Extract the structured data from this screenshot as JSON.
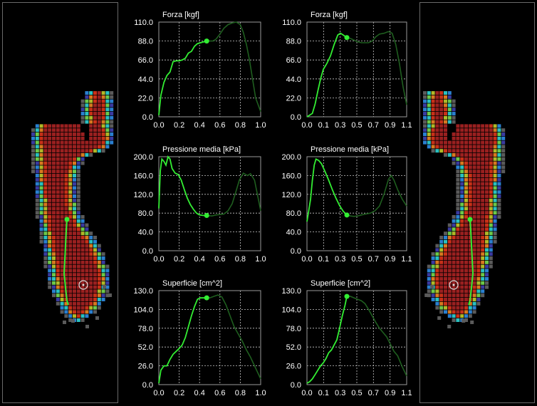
{
  "colors": {
    "background": "#000000",
    "panel_border": "#6a6a6a",
    "grid": "#c8c8c8",
    "axis_text": "#ffffff",
    "trace_active": "#33ee33",
    "trace_pending": "#1f5e1f",
    "pressure_scale": [
      "#5a5a5a",
      "#3a3aa0",
      "#2a7fd0",
      "#2ac0c0",
      "#6cc84a",
      "#b0b828",
      "#d87820",
      "#c83018",
      "#9a2020"
    ],
    "cop_marker": "#33ee33",
    "start_marker": "#dddddd"
  },
  "left_foot": {
    "side": "left",
    "cop_trace_icon": "cop-trace",
    "start_marker_icon": "circle-marker"
  },
  "right_foot": {
    "side": "right",
    "cop_trace_icon": "cop-trace",
    "start_marker_icon": "circle-marker"
  },
  "chart_data": [
    {
      "type": "line",
      "foot": "left",
      "title": "Forza [kgf]",
      "ylim": [
        0,
        110
      ],
      "yticks": [
        "0.0",
        "22.0",
        "44.0",
        "66.0",
        "88.0",
        "110.0"
      ],
      "xlim": [
        0,
        1.0
      ],
      "xticks": [
        "0.0",
        "0.2",
        "0.4",
        "0.6",
        "0.8",
        "1.0"
      ],
      "cursor_x": 0.47,
      "grid": true,
      "x": [
        0.0,
        0.02,
        0.05,
        0.08,
        0.11,
        0.14,
        0.17,
        0.2,
        0.23,
        0.26,
        0.29,
        0.32,
        0.35,
        0.38,
        0.41,
        0.44,
        0.47,
        0.5,
        0.53,
        0.56,
        0.6,
        0.64,
        0.68,
        0.72,
        0.76,
        0.8,
        0.83,
        0.86,
        0.89,
        0.92,
        0.95,
        1.0
      ],
      "y": [
        2,
        25,
        40,
        48,
        52,
        64,
        65,
        65,
        66,
        68,
        74,
        76,
        82,
        85,
        86,
        87,
        88,
        88,
        88,
        90,
        96,
        103,
        107,
        109,
        110,
        107,
        98,
        84,
        66,
        44,
        22,
        6
      ]
    },
    {
      "type": "line",
      "foot": "right",
      "title": "Forza [kgf]",
      "ylim": [
        0,
        110
      ],
      "yticks": [
        "0.0",
        "22.0",
        "44.0",
        "66.0",
        "88.0",
        "110.0"
      ],
      "xlim": [
        0,
        1.1
      ],
      "xticks": [
        "0.0",
        "0.1",
        "0.3",
        "0.5",
        "0.7",
        "0.9",
        "1.1"
      ],
      "cursor_x": 0.44,
      "grid": true,
      "x": [
        0.0,
        0.03,
        0.06,
        0.09,
        0.12,
        0.15,
        0.18,
        0.22,
        0.26,
        0.3,
        0.34,
        0.37,
        0.4,
        0.44,
        0.48,
        0.52,
        0.56,
        0.6,
        0.64,
        0.68,
        0.72,
        0.76,
        0.8,
        0.85,
        0.9,
        0.94,
        0.98,
        1.02,
        1.06,
        1.1
      ],
      "y": [
        0,
        2,
        4,
        15,
        30,
        44,
        55,
        62,
        71,
        84,
        95,
        97,
        95,
        92,
        91,
        89,
        87,
        86,
        86,
        86,
        88,
        93,
        96,
        97,
        99,
        97,
        84,
        62,
        35,
        14
      ]
    },
    {
      "type": "line",
      "foot": "left",
      "title": "Pressione media [kPa]",
      "ylim": [
        0,
        200
      ],
      "yticks": [
        "0.0",
        "40.0",
        "80.0",
        "120.0",
        "160.0",
        "200.0"
      ],
      "xlim": [
        0,
        1.0
      ],
      "xticks": [
        "0.0",
        "0.2",
        "0.4",
        "0.6",
        "0.8",
        "1.0"
      ],
      "cursor_x": 0.47,
      "grid": true,
      "x": [
        0.0,
        0.015,
        0.03,
        0.05,
        0.07,
        0.09,
        0.11,
        0.13,
        0.16,
        0.19,
        0.22,
        0.25,
        0.28,
        0.31,
        0.34,
        0.37,
        0.4,
        0.44,
        0.47,
        0.52,
        0.56,
        0.6,
        0.64,
        0.68,
        0.72,
        0.76,
        0.79,
        0.83,
        0.87,
        0.9,
        0.94,
        1.0
      ],
      "y": [
        90,
        170,
        195,
        190,
        182,
        200,
        195,
        175,
        165,
        162,
        150,
        130,
        112,
        98,
        88,
        80,
        76,
        75,
        75,
        74,
        76,
        77,
        78,
        85,
        100,
        128,
        150,
        165,
        160,
        164,
        150,
        85
      ]
    },
    {
      "type": "line",
      "foot": "right",
      "title": "Pressione media [kPa]",
      "ylim": [
        0,
        200
      ],
      "yticks": [
        "0.0",
        "40.0",
        "80.0",
        "120.0",
        "160.0",
        "200.0"
      ],
      "xlim": [
        0,
        1.1
      ],
      "xticks": [
        "0.0",
        "0.1",
        "0.3",
        "0.5",
        "0.7",
        "0.9",
        "1.1"
      ],
      "cursor_x": 0.44,
      "grid": true,
      "x": [
        0.0,
        0.02,
        0.04,
        0.06,
        0.08,
        0.1,
        0.13,
        0.16,
        0.2,
        0.24,
        0.28,
        0.32,
        0.36,
        0.4,
        0.44,
        0.48,
        0.52,
        0.56,
        0.6,
        0.65,
        0.7,
        0.75,
        0.8,
        0.85,
        0.9,
        0.93,
        0.96,
        1.0,
        1.05,
        1.1
      ],
      "y": [
        62,
        85,
        110,
        150,
        182,
        195,
        192,
        185,
        168,
        150,
        130,
        112,
        96,
        84,
        76,
        74,
        73,
        74,
        76,
        78,
        80,
        85,
        95,
        120,
        152,
        160,
        150,
        130,
        110,
        95
      ]
    },
    {
      "type": "line",
      "foot": "left",
      "title": "Superficie [cm^2]",
      "ylim": [
        0,
        130
      ],
      "yticks": [
        "0.0",
        "26.0",
        "52.0",
        "78.0",
        "104.0",
        "130.0"
      ],
      "xlim": [
        0,
        1.0
      ],
      "xticks": [
        "0.0",
        "0.2",
        "0.4",
        "0.6",
        "0.8",
        "1.0"
      ],
      "cursor_x": 0.47,
      "grid": true,
      "x": [
        0.0,
        0.02,
        0.05,
        0.08,
        0.11,
        0.14,
        0.17,
        0.2,
        0.23,
        0.26,
        0.29,
        0.32,
        0.35,
        0.38,
        0.41,
        0.44,
        0.47,
        0.5,
        0.54,
        0.58,
        0.62,
        0.66,
        0.7,
        0.74,
        0.78,
        0.82,
        0.86,
        0.9,
        0.94,
        1.0
      ],
      "y": [
        2,
        20,
        26,
        26,
        35,
        42,
        46,
        50,
        55,
        65,
        80,
        95,
        108,
        118,
        120,
        120,
        120,
        120,
        122,
        124,
        121,
        110,
        95,
        80,
        70,
        60,
        48,
        38,
        26,
        8
      ]
    },
    {
      "type": "line",
      "foot": "right",
      "title": "Superficie [cm^2]",
      "ylim": [
        0,
        130
      ],
      "yticks": [
        "0.0",
        "26.0",
        "52.0",
        "78.0",
        "104.0",
        "130.0"
      ],
      "xlim": [
        0,
        1.1
      ],
      "xticks": [
        "0.0",
        "0.1",
        "0.3",
        "0.5",
        "0.7",
        "0.9",
        "1.1"
      ],
      "cursor_x": 0.44,
      "grid": true,
      "x": [
        0.0,
        0.03,
        0.06,
        0.09,
        0.12,
        0.15,
        0.18,
        0.21,
        0.24,
        0.27,
        0.3,
        0.33,
        0.36,
        0.39,
        0.42,
        0.44,
        0.48,
        0.52,
        0.56,
        0.6,
        0.64,
        0.68,
        0.72,
        0.76,
        0.8,
        0.84,
        0.88,
        0.92,
        0.96,
        1.0,
        1.05,
        1.1
      ],
      "y": [
        2,
        4,
        8,
        14,
        20,
        26,
        30,
        36,
        44,
        48,
        55,
        62,
        78,
        95,
        110,
        122,
        122,
        120,
        118,
        116,
        112,
        104,
        95,
        86,
        78,
        72,
        66,
        56,
        46,
        40,
        25,
        12
      ]
    }
  ]
}
